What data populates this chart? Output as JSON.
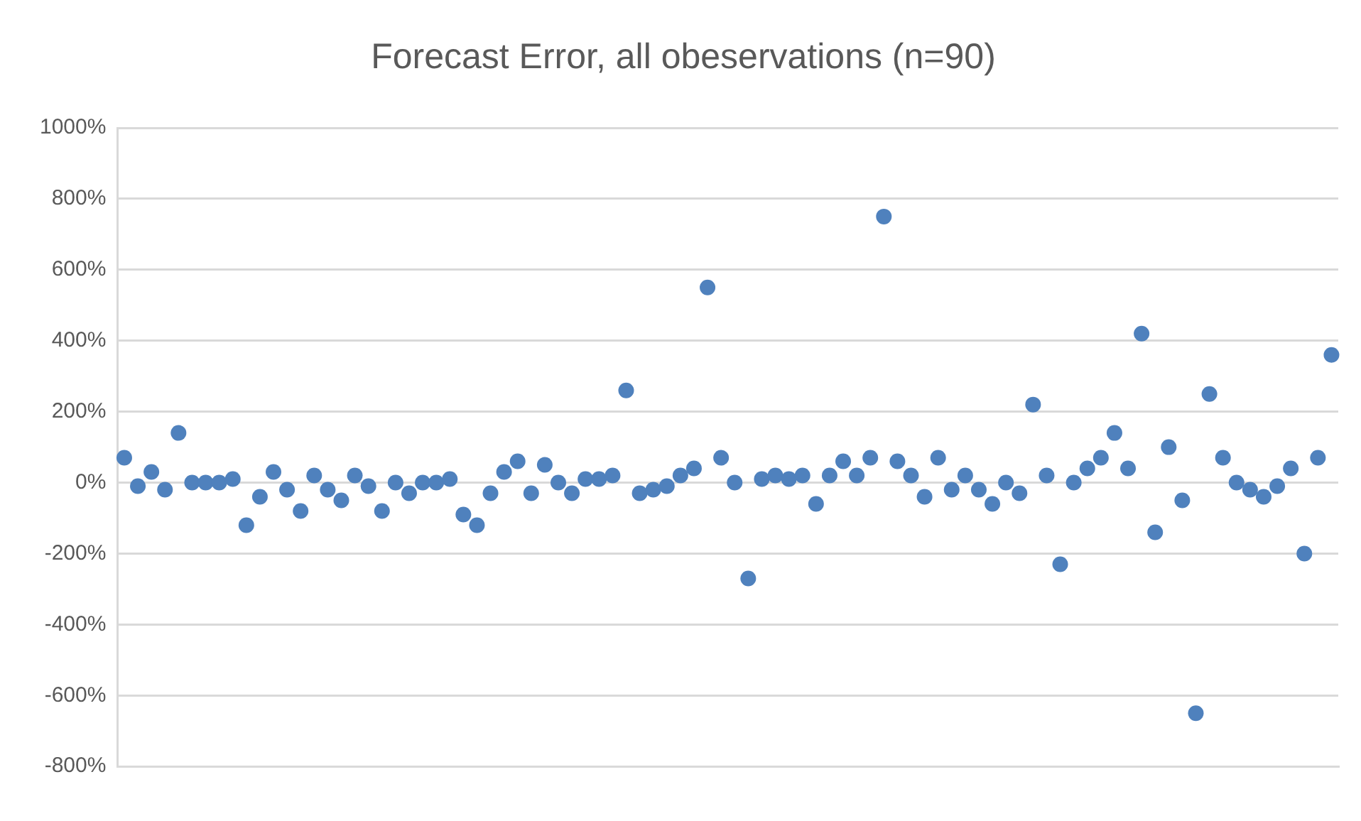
{
  "chart_data": {
    "type": "scatter",
    "title": "Forecast Error, all obeservations (n=90)",
    "categories": [
      null,
      null,
      null,
      null,
      null,
      null,
      null,
      null,
      null,
      null,
      null,
      null,
      null,
      null,
      null,
      null,
      null,
      null,
      null,
      null,
      null,
      null,
      null,
      null,
      null,
      null,
      null,
      null,
      null,
      null,
      null,
      null,
      null,
      null,
      null,
      null,
      null,
      null,
      null,
      null,
      null,
      null,
      null,
      null,
      null,
      null,
      null,
      null,
      null,
      null,
      null,
      null,
      null,
      null,
      null,
      null,
      null,
      null,
      null,
      null,
      null,
      null,
      null,
      null,
      null,
      null,
      null,
      null,
      null,
      null,
      null,
      null,
      null,
      null,
      null,
      null,
      null,
      null,
      null,
      null,
      null,
      null,
      null,
      null,
      null,
      null,
      null,
      null,
      null,
      null
    ],
    "series": [
      {
        "color": "#4f81bd",
        "values": [
          70,
          -10,
          30,
          -20,
          140,
          0,
          0,
          0,
          10,
          -120,
          -40,
          30,
          -20,
          -80,
          20,
          -20,
          -50,
          20,
          -10,
          -80,
          0,
          -30,
          0,
          0,
          10,
          -90,
          -120,
          -30,
          30,
          60,
          -30,
          50,
          0,
          -30,
          10,
          10,
          20,
          260,
          -30,
          -20,
          -10,
          20,
          40,
          550,
          70,
          0,
          -270,
          10,
          20,
          10,
          20,
          -60,
          20,
          60,
          20,
          70,
          750,
          60,
          20,
          -40,
          70,
          -20,
          20,
          -20,
          -60,
          0,
          -30,
          220,
          20,
          -230,
          0,
          40,
          70,
          140,
          40,
          420,
          -140,
          100,
          -50,
          -650,
          250,
          70,
          0,
          -20,
          -40,
          -10,
          40,
          -200,
          70,
          360
        ]
      }
    ],
    "ylim": [
      -800,
      1000
    ],
    "yticks": [
      {
        "value": -800,
        "label": "-800%"
      },
      {
        "value": -600,
        "label": "-600%"
      },
      {
        "value": -400,
        "label": "-400%"
      },
      {
        "value": -200,
        "label": "-200%"
      },
      {
        "value": 0,
        "label": "0%"
      },
      {
        "value": 200,
        "label": "200%"
      },
      {
        "value": 400,
        "label": "400%"
      },
      {
        "value": 600,
        "label": "600%"
      },
      {
        "value": 800,
        "label": "800%"
      },
      {
        "value": 1000,
        "label": "1000%"
      }
    ],
    "grid": "y",
    "marker": "circle"
  }
}
